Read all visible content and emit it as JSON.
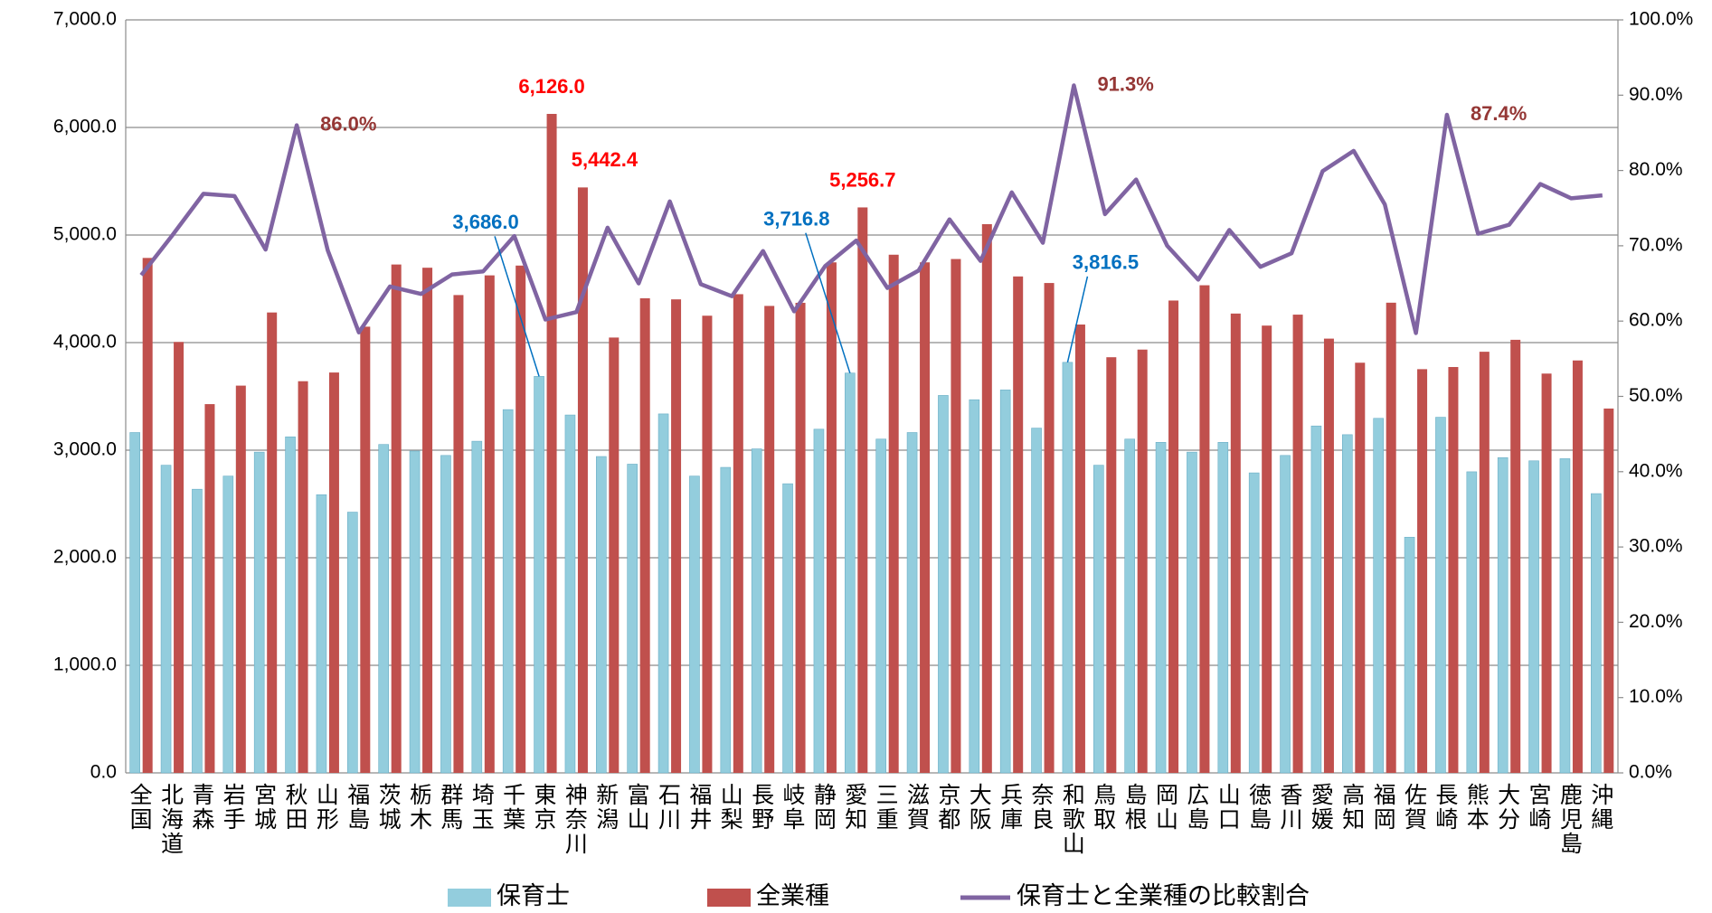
{
  "chart_data": {
    "type": "bar",
    "categories": [
      "全国",
      "北海道",
      "青森",
      "岩手",
      "宮城",
      "秋田",
      "山形",
      "福島",
      "茨城",
      "栃木",
      "群馬",
      "埼玉",
      "千葉",
      "東京",
      "神奈川",
      "新潟",
      "富山",
      "石川",
      "福井",
      "山梨",
      "長野",
      "岐阜",
      "静岡",
      "愛知",
      "三重",
      "滋賀",
      "京都",
      "大阪",
      "兵庫",
      "奈良",
      "和歌山",
      "鳥取",
      "島根",
      "岡山",
      "広島",
      "山口",
      "徳島",
      "香川",
      "愛媛",
      "高知",
      "福岡",
      "佐賀",
      "長崎",
      "熊本",
      "大分",
      "宮崎",
      "鹿児島",
      "沖縄"
    ],
    "series": [
      {
        "name": "保育士",
        "color": "#93cddd",
        "values": [
          3164,
          2860,
          2637,
          2759,
          2982,
          3124,
          2586,
          2424,
          3053,
          2992,
          2951,
          3083,
          3377,
          3686.0,
          3327,
          2941,
          2870,
          3337,
          2759,
          2840,
          3012,
          2688,
          3195,
          3716.8,
          3103,
          3164,
          3509,
          3469,
          3560,
          3205,
          3816.5,
          2860,
          3103,
          3073,
          2982,
          3073,
          2789,
          2951,
          3225,
          3144,
          3296,
          2191,
          3306,
          2799,
          2931,
          2901,
          2921,
          2596
        ],
        "value_labels": [
          null,
          null,
          null,
          null,
          null,
          null,
          null,
          null,
          null,
          null,
          null,
          null,
          null,
          "3,686.0",
          null,
          null,
          null,
          null,
          null,
          null,
          null,
          null,
          null,
          "3,716.8",
          null,
          null,
          null,
          null,
          null,
          null,
          "3,816.5",
          null,
          null,
          null,
          null,
          null,
          null,
          null,
          null,
          null,
          null,
          null,
          null,
          null,
          null,
          null,
          null,
          null
        ],
        "label_color": "#0070c0"
      },
      {
        "name": "全業種",
        "color": "#c0504d",
        "values": [
          4787,
          4006,
          3428,
          3600,
          4280,
          3641,
          3722,
          4148,
          4726,
          4696,
          4442,
          4625,
          4716,
          6126.0,
          5442.4,
          4047,
          4412,
          4402,
          4250,
          4450,
          4341,
          4370,
          4746,
          5256.7,
          4817,
          4746,
          4777,
          5101,
          4615,
          4554,
          4168,
          3864,
          3935,
          4391,
          4533,
          4270,
          4158,
          4260,
          4037,
          3813,
          4371,
          3753,
          3773,
          3915,
          4026,
          3712,
          3834,
          3387
        ],
        "value_labels": [
          null,
          null,
          null,
          null,
          null,
          null,
          null,
          null,
          null,
          null,
          null,
          null,
          null,
          "6,126.0",
          "5,442.4",
          null,
          null,
          null,
          null,
          null,
          null,
          null,
          null,
          "5,256.7",
          null,
          null,
          null,
          null,
          null,
          null,
          null,
          null,
          null,
          null,
          null,
          null,
          null,
          null,
          null,
          null,
          null,
          null,
          null,
          null,
          null,
          null,
          null,
          null
        ],
        "label_color": "#ff0000"
      },
      {
        "name": "保育士と全業種の比較割合",
        "color": "#8064a2",
        "type": "line",
        "axis": "y2",
        "values": [
          66.1,
          71.4,
          76.9,
          76.6,
          69.5,
          86.0,
          69.4,
          58.5,
          64.6,
          63.6,
          66.2,
          66.6,
          71.3,
          60.2,
          61.2,
          72.4,
          65.0,
          75.9,
          64.9,
          63.3,
          69.3,
          61.3,
          67.3,
          70.7,
          64.4,
          66.7,
          73.5,
          68.0,
          77.1,
          70.4,
          91.3,
          74.2,
          78.8,
          70.0,
          65.5,
          72.1,
          67.2,
          69.0,
          79.9,
          82.6,
          75.5,
          58.4,
          87.4,
          71.6,
          72.8,
          78.2,
          76.3,
          76.7
        ],
        "value_labels": [
          null,
          null,
          null,
          null,
          null,
          "86.0%",
          null,
          null,
          null,
          null,
          null,
          null,
          null,
          null,
          null,
          null,
          null,
          null,
          null,
          null,
          null,
          null,
          null,
          null,
          null,
          null,
          null,
          null,
          null,
          null,
          "91.3%",
          null,
          null,
          null,
          null,
          null,
          null,
          null,
          null,
          null,
          null,
          null,
          "87.4%",
          null,
          null,
          null,
          null,
          null
        ],
        "label_color": "#953735"
      }
    ],
    "ylim": [
      0,
      7000
    ],
    "yticks": [
      {
        "value": 0,
        "label": "0.0"
      },
      {
        "value": 1000,
        "label": "1,000.0"
      },
      {
        "value": 2000,
        "label": "2,000.0"
      },
      {
        "value": 3000,
        "label": "3,000.0"
      },
      {
        "value": 4000,
        "label": "4,000.0"
      },
      {
        "value": 5000,
        "label": "5,000.0"
      },
      {
        "value": 6000,
        "label": "6,000.0"
      },
      {
        "value": 7000,
        "label": "7,000.0"
      }
    ],
    "y2lim": [
      0,
      100
    ],
    "y2ticks": [
      {
        "value": 0,
        "label": "0.0%"
      },
      {
        "value": 10,
        "label": "10.0%"
      },
      {
        "value": 20,
        "label": "20.0%"
      },
      {
        "value": 30,
        "label": "30.0%"
      },
      {
        "value": 40,
        "label": "40.0%"
      },
      {
        "value": 50,
        "label": "50.0%"
      },
      {
        "value": 60,
        "label": "60.0%"
      },
      {
        "value": 70,
        "label": "70.0%"
      },
      {
        "value": 80,
        "label": "80.0%"
      },
      {
        "value": 90,
        "label": "90.0%"
      },
      {
        "value": 100,
        "label": "100.0%"
      }
    ],
    "grid": true,
    "legend": "bottom"
  }
}
